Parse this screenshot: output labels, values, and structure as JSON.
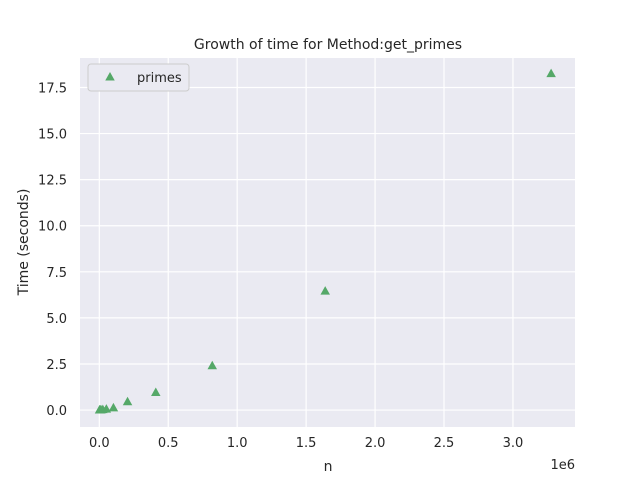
{
  "chart_data": {
    "type": "scatter",
    "title": "Growth of time for Method:get_primes",
    "xlabel": "n",
    "ylabel": "Time (seconds)",
    "x_offset_text": "1e6",
    "xlim": [
      -0.14,
      3.45
    ],
    "ylim": [
      -0.92,
      19.1
    ],
    "xticks": [
      0.0,
      0.5,
      1.0,
      1.5,
      2.0,
      2.5,
      3.0
    ],
    "xtick_labels": [
      "0.0",
      "0.5",
      "1.0",
      "1.5",
      "2.0",
      "2.5",
      "3.0"
    ],
    "yticks": [
      0.0,
      2.5,
      5.0,
      7.5,
      10.0,
      12.5,
      15.0,
      17.5
    ],
    "ytick_labels": [
      "0.0",
      "2.5",
      "5.0",
      "7.5",
      "10.0",
      "12.5",
      "15.0",
      "17.5"
    ],
    "grid": true,
    "legend_position": "top-left",
    "marker": "triangle-up",
    "colors": {
      "series": "#55a868",
      "axes_bg": "#eaeaf2",
      "grid": "#ffffff"
    },
    "series": [
      {
        "name": "primes",
        "x": [
          0.0016,
          0.0032,
          0.0064,
          0.0128,
          0.0256,
          0.0512,
          0.1024,
          0.2048,
          0.4096,
          0.8192,
          1.6384,
          3.2768
        ],
        "y": [
          0.0,
          0.0,
          0.0,
          0.01,
          0.02,
          0.05,
          0.12,
          0.45,
          0.95,
          2.4,
          6.45,
          18.25
        ]
      }
    ]
  }
}
